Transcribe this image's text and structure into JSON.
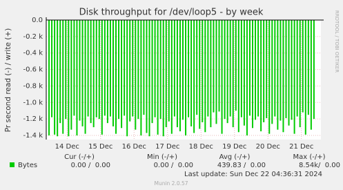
{
  "chart_data": {
    "type": "bar",
    "title": "Disk throughput for /dev/loop5 - by week",
    "y_label": "Pr second read (-) / write (+)",
    "side_text": "RRDTOOL / TOBI OETIKER",
    "xlim": [
      0,
      197
    ],
    "xticks": [
      {
        "value": 15,
        "label": "14 Dec"
      },
      {
        "value": 39,
        "label": "15 Dec"
      },
      {
        "value": 63,
        "label": "16 Dec"
      },
      {
        "value": 87,
        "label": "17 Dec"
      },
      {
        "value": 111,
        "label": "18 Dec"
      },
      {
        "value": 135,
        "label": "19 Dec"
      },
      {
        "value": 159,
        "label": "20 Dec"
      },
      {
        "value": 183,
        "label": "21 Dec"
      }
    ],
    "ylim": [
      -1450,
      0
    ],
    "yticks": [
      {
        "value": 0,
        "label": "0.0"
      },
      {
        "value": -200,
        "label": "-0.2 k"
      },
      {
        "value": -400,
        "label": "-0.4 k"
      },
      {
        "value": -600,
        "label": "-0.6 k"
      },
      {
        "value": -800,
        "label": "-0.8 k"
      },
      {
        "value": -1000,
        "label": "-1.0 k"
      },
      {
        "value": -1200,
        "label": "-1.2 k"
      },
      {
        "value": -1400,
        "label": "-1.4 k"
      }
    ],
    "grid": true,
    "series": [
      {
        "name": "Bytes",
        "color": "#00cc00",
        "x": [
          2,
          4,
          6,
          8,
          10,
          12,
          14,
          16,
          18,
          20,
          22,
          24,
          26,
          28,
          30,
          32,
          34,
          36,
          38,
          40,
          42,
          44,
          46,
          48,
          50,
          52,
          54,
          56,
          58,
          60,
          62,
          64,
          66,
          68,
          70,
          72,
          74,
          76,
          78,
          80,
          82,
          84,
          86,
          88,
          90,
          92,
          94,
          96,
          98,
          100,
          102,
          104,
          106,
          108,
          110,
          112,
          114,
          116,
          118,
          120,
          122,
          124,
          126,
          128,
          130,
          132,
          134,
          136,
          138,
          140,
          142,
          144,
          146,
          148,
          150,
          152,
          154,
          156,
          158,
          160,
          162,
          164,
          166,
          168,
          170,
          172,
          174,
          176,
          178,
          180,
          182,
          184,
          186,
          188,
          190,
          192
        ],
        "values": [
          -1400,
          -1180,
          -1390,
          -1410,
          -1250,
          -1380,
          -1200,
          -1410,
          -1330,
          -1160,
          -1400,
          -1220,
          -1290,
          -1380,
          -1170,
          -1250,
          -1300,
          -1180,
          -1200,
          -1390,
          -1160,
          -1250,
          -1170,
          -1290,
          -1380,
          -1200,
          -1310,
          -1160,
          -1410,
          -1230,
          -1170,
          -1330,
          -1200,
          -1400,
          -1150,
          -1370,
          -1410,
          -1250,
          -1180,
          -1390,
          -1200,
          -1410,
          -1300,
          -1230,
          -1380,
          -1170,
          -1300,
          -1350,
          -1210,
          -1400,
          -1180,
          -1290,
          -1370,
          -1150,
          -1320,
          -1240,
          -1360,
          -1170,
          -1300,
          -1120,
          -1260,
          -1110,
          -1380,
          -1200,
          -1250,
          -1170,
          -1300,
          -1100,
          -1360,
          -1180,
          -1280,
          -1400,
          -1160,
          -1310,
          -1210,
          -1170,
          -1350,
          -1240,
          -1190,
          -1380,
          -1260,
          -1170,
          -1330,
          -1220,
          -1360,
          -1190,
          -1280,
          -1210,
          -1380,
          -1170,
          -1300,
          -1120,
          -1390,
          -1150,
          -1330,
          -1200
        ]
      }
    ],
    "legend_table": {
      "headers": [
        "Cur (-/+)",
        "Min (-/+)",
        "Avg (-/+)",
        "Max (-/+)"
      ],
      "row": [
        "0.00 /  0.00",
        "0.00 /  0.00",
        "439.83 /  0.00",
        "8.54k/  0.00"
      ]
    },
    "last_update": "Last update: Sun Dec 22 04:36:31 2024",
    "footer": "Munin 2.0.57"
  }
}
